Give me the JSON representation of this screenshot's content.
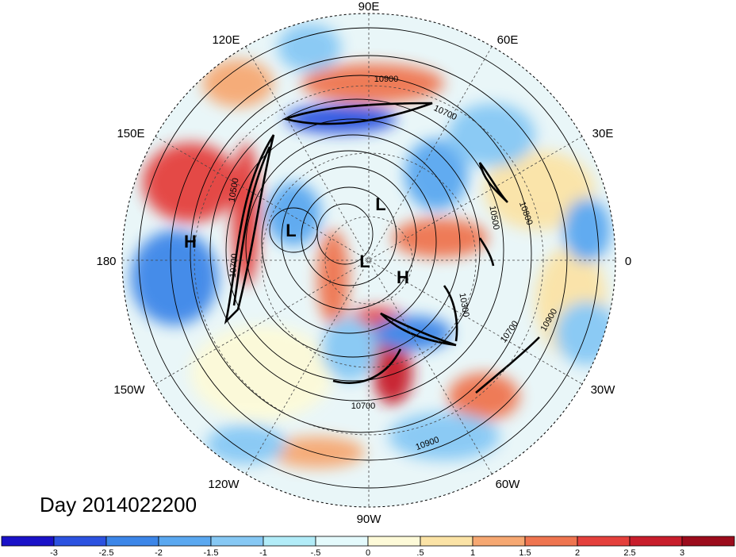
{
  "map": {
    "title": "Day 2014022200",
    "projection": "north polar stereographic",
    "longitude_labels": [
      "90E",
      "60E",
      "30E",
      "0",
      "30W",
      "60W",
      "90W",
      "120W",
      "150W",
      "180",
      "150E",
      "120E"
    ],
    "pressure_centers": [
      "H",
      "L",
      "L",
      "L",
      "H"
    ],
    "contour_labels": [
      "10900",
      "10700",
      "10800",
      "10500",
      "10300",
      "10700",
      "10900",
      "10900",
      "10700",
      "10700",
      "10500"
    ]
  },
  "colorbar": {
    "tick_labels": [
      "-3",
      "-2.5",
      "-2",
      "-1.5",
      "-1",
      "-.5",
      "0",
      ".5",
      "1",
      "1.5",
      "2",
      "2.5",
      "3"
    ],
    "colors": [
      "#1a12c8",
      "#2c52e0",
      "#3c86e8",
      "#5aa8f0",
      "#86c8f4",
      "#b2ecf8",
      "#e4fafc",
      "#fdfad8",
      "#fbe3a6",
      "#f6a872",
      "#ef7550",
      "#e4403c",
      "#c81e2c",
      "#9c0c1c"
    ]
  }
}
